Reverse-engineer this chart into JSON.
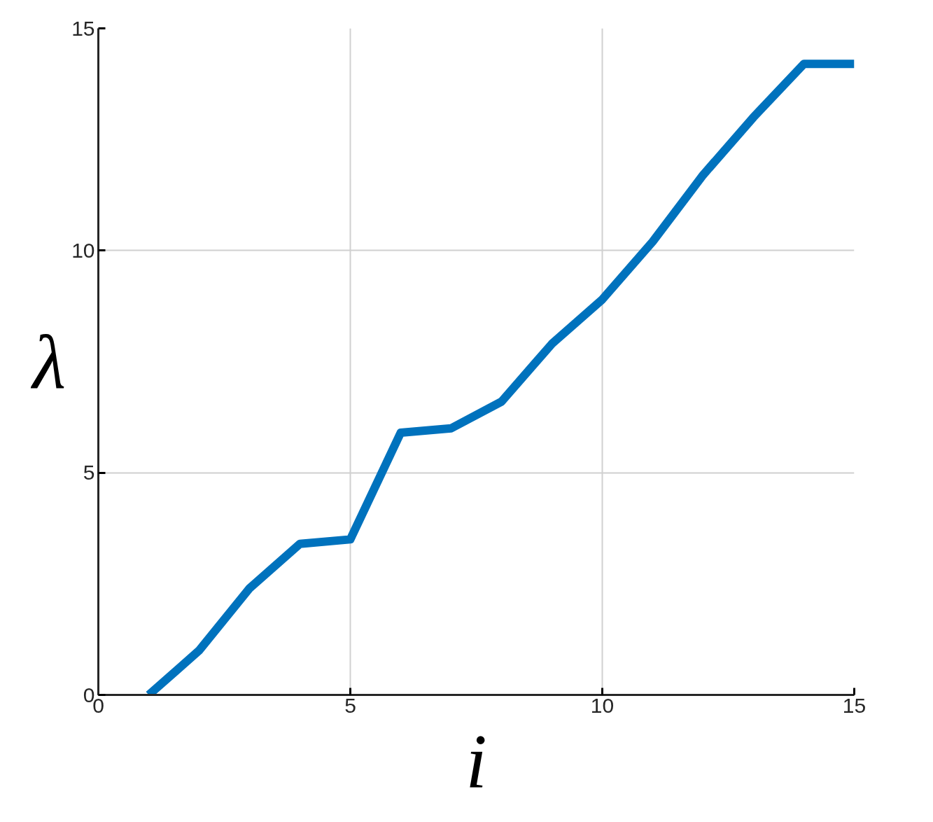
{
  "chart_data": {
    "type": "line",
    "xlabel": "i",
    "ylabel": "λ",
    "x": [
      1,
      2,
      3,
      4,
      5,
      6,
      7,
      8,
      9,
      10,
      11,
      12,
      13,
      14,
      15
    ],
    "series": [
      {
        "color": "#0072bd",
        "values": [
          0,
          1.0,
          2.4,
          3.4,
          3.5,
          5.9,
          6.0,
          6.6,
          7.9,
          8.9,
          10.2,
          11.7,
          13.0,
          14.2,
          14.2
        ]
      }
    ],
    "xlim": [
      0,
      15
    ],
    "ylim": [
      0,
      15
    ],
    "xticks": [
      0,
      5,
      10,
      15
    ],
    "yticks": [
      0,
      5,
      10,
      15
    ],
    "grid": true,
    "line_style": "solid"
  }
}
